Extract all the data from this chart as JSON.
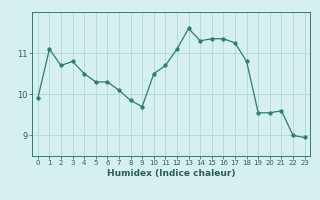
{
  "xlabel": "Humidex (Indice chaleur)",
  "ylabel": "",
  "x_values": [
    0,
    1,
    2,
    3,
    4,
    5,
    6,
    7,
    8,
    9,
    10,
    11,
    12,
    13,
    14,
    15,
    16,
    17,
    18,
    19,
    20,
    21,
    22,
    23
  ],
  "y_values": [
    9.9,
    11.1,
    10.7,
    10.8,
    10.5,
    10.3,
    10.3,
    10.1,
    9.85,
    9.7,
    10.5,
    10.7,
    11.1,
    11.6,
    11.3,
    11.35,
    11.35,
    11.25,
    10.8,
    9.55,
    9.55,
    9.6,
    9.0,
    8.95
  ],
  "line_color": "#2e7d6e",
  "marker": "o",
  "marker_size": 2.5,
  "bg_color": "#d6f0f0",
  "grid_color": "#b0d8d8",
  "axis_color": "#2e7d6e",
  "text_color": "#2e5c5c",
  "ylim": [
    8.5,
    12.0
  ],
  "yticks": [
    9,
    10,
    11
  ],
  "fig_bg_color": "#d6f0f0"
}
